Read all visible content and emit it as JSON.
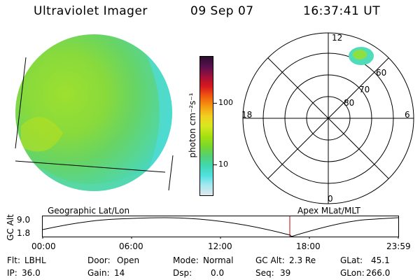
{
  "header": {
    "title": "Ultraviolet Imager",
    "date": "09 Sep 07",
    "time": "16:37:41 UT"
  },
  "colorbar": {
    "unit_label": "photon cm⁻²s⁻¹",
    "tick_labels": [
      "100",
      "10"
    ],
    "colors": [
      "#2b0f2e",
      "#5a1050",
      "#a0103a",
      "#d81820",
      "#f05a10",
      "#f59a10",
      "#f2cf20",
      "#d8e820",
      "#a8e010",
      "#7ad82a",
      "#55d070",
      "#40d8b0",
      "#50e0e0",
      "#a8e8f0",
      "#e0e8ec"
    ]
  },
  "polar_plot": {
    "mlt_labels": {
      "top": "12",
      "left": "18",
      "right": "6",
      "bottom": "0"
    },
    "lat_labels": [
      "60",
      "70",
      "80"
    ]
  },
  "timeline": {
    "left_label": "Geographic Lat/Lon",
    "right_label": "Apex MLat/MLT",
    "y_axis_label": "GC Alt",
    "y_ticks": [
      "9.0",
      "1.8"
    ],
    "x_ticks": [
      "00:00",
      "06:00",
      "12:00",
      "18:00",
      "23:59"
    ],
    "marker_time": "16:37:41",
    "marker_color": "#c00000"
  },
  "status": {
    "flt_label": "Flt:",
    "flt_value": "LBHL",
    "ip_label": "IP:",
    "ip_value": "36.0",
    "door_label": "Door:",
    "door_value": "Open",
    "gain_label": "Gain:",
    "gain_value": "14",
    "mode_label": "Mode:",
    "mode_value": "Normal",
    "dsp_label": "Dsp:",
    "dsp_value": "0.0",
    "gcalt_label": "GC Alt:",
    "gcalt_value": "2.3 Re",
    "seq_label": "Seq:",
    "seq_value": "39",
    "glat_label": "GLat:",
    "glat_value": "45.1",
    "glon_label": "GLon:",
    "glon_value": "266.0"
  }
}
